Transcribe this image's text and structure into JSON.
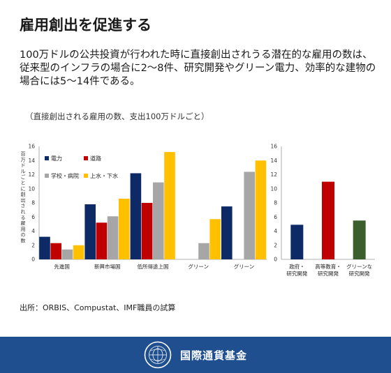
{
  "title": "雇用創出を促進する",
  "lead": "100万ドルの公共投資が行われた時に直接創出されうる潜在的な雇用の数は、従来型のインフラの場合に2〜8件、研究開発やグリーン電力、効率的な建物の場合には5〜14件である。",
  "subtitle": "（直接創出される雇用の数、支出100万ドルごと）",
  "source": "出所：ORBIS、Compustat、IMF職員の試算",
  "org_name": "国際通貨基金",
  "colors": {
    "electricity": "#0d2a66",
    "roads": "#c00000",
    "schools": "#a6a6a6",
    "water": "#ffc000",
    "green": "#3a5f2c",
    "footer": "#1f4f8f"
  },
  "chart_data": [
    {
      "type": "bar",
      "ylabel": "百万ドルごとに創出される雇用の数",
      "ylim": [
        0,
        16
      ],
      "yticks": [
        0,
        2,
        4,
        6,
        8,
        10,
        12,
        14,
        16
      ],
      "categories": [
        "先進国",
        "新興市場国",
        "低所得途上国",
        "グリーン",
        "グリーン"
      ],
      "series": [
        {
          "name": "電力",
          "color": "#0d2a66",
          "values": [
            3.2,
            7.8,
            12.2,
            null,
            7.5
          ]
        },
        {
          "name": "道路",
          "color": "#c00000",
          "values": [
            2.3,
            5.2,
            8.0,
            null,
            null
          ]
        },
        {
          "name": "学校・病院",
          "color": "#a6a6a6",
          "values": [
            1.4,
            6.1,
            10.9,
            2.3,
            12.4
          ]
        },
        {
          "name": "上水・下水",
          "color": "#ffc000",
          "values": [
            2.0,
            8.6,
            15.2,
            5.7,
            14.0
          ]
        }
      ],
      "legend": "top-left",
      "grid": false
    },
    {
      "type": "bar",
      "ylim": [
        0,
        16
      ],
      "yticks": [
        0,
        2,
        4,
        6,
        8,
        10,
        12,
        14,
        16
      ],
      "categories": [
        "政府・\n研究開発",
        "高等教育・\n研究開発",
        "グリーンな\n研究開発"
      ],
      "values": [
        4.9,
        11.0,
        5.5
      ],
      "colors": [
        "#0d2a66",
        "#c00000",
        "#3a5f2c"
      ],
      "grid": false
    }
  ]
}
